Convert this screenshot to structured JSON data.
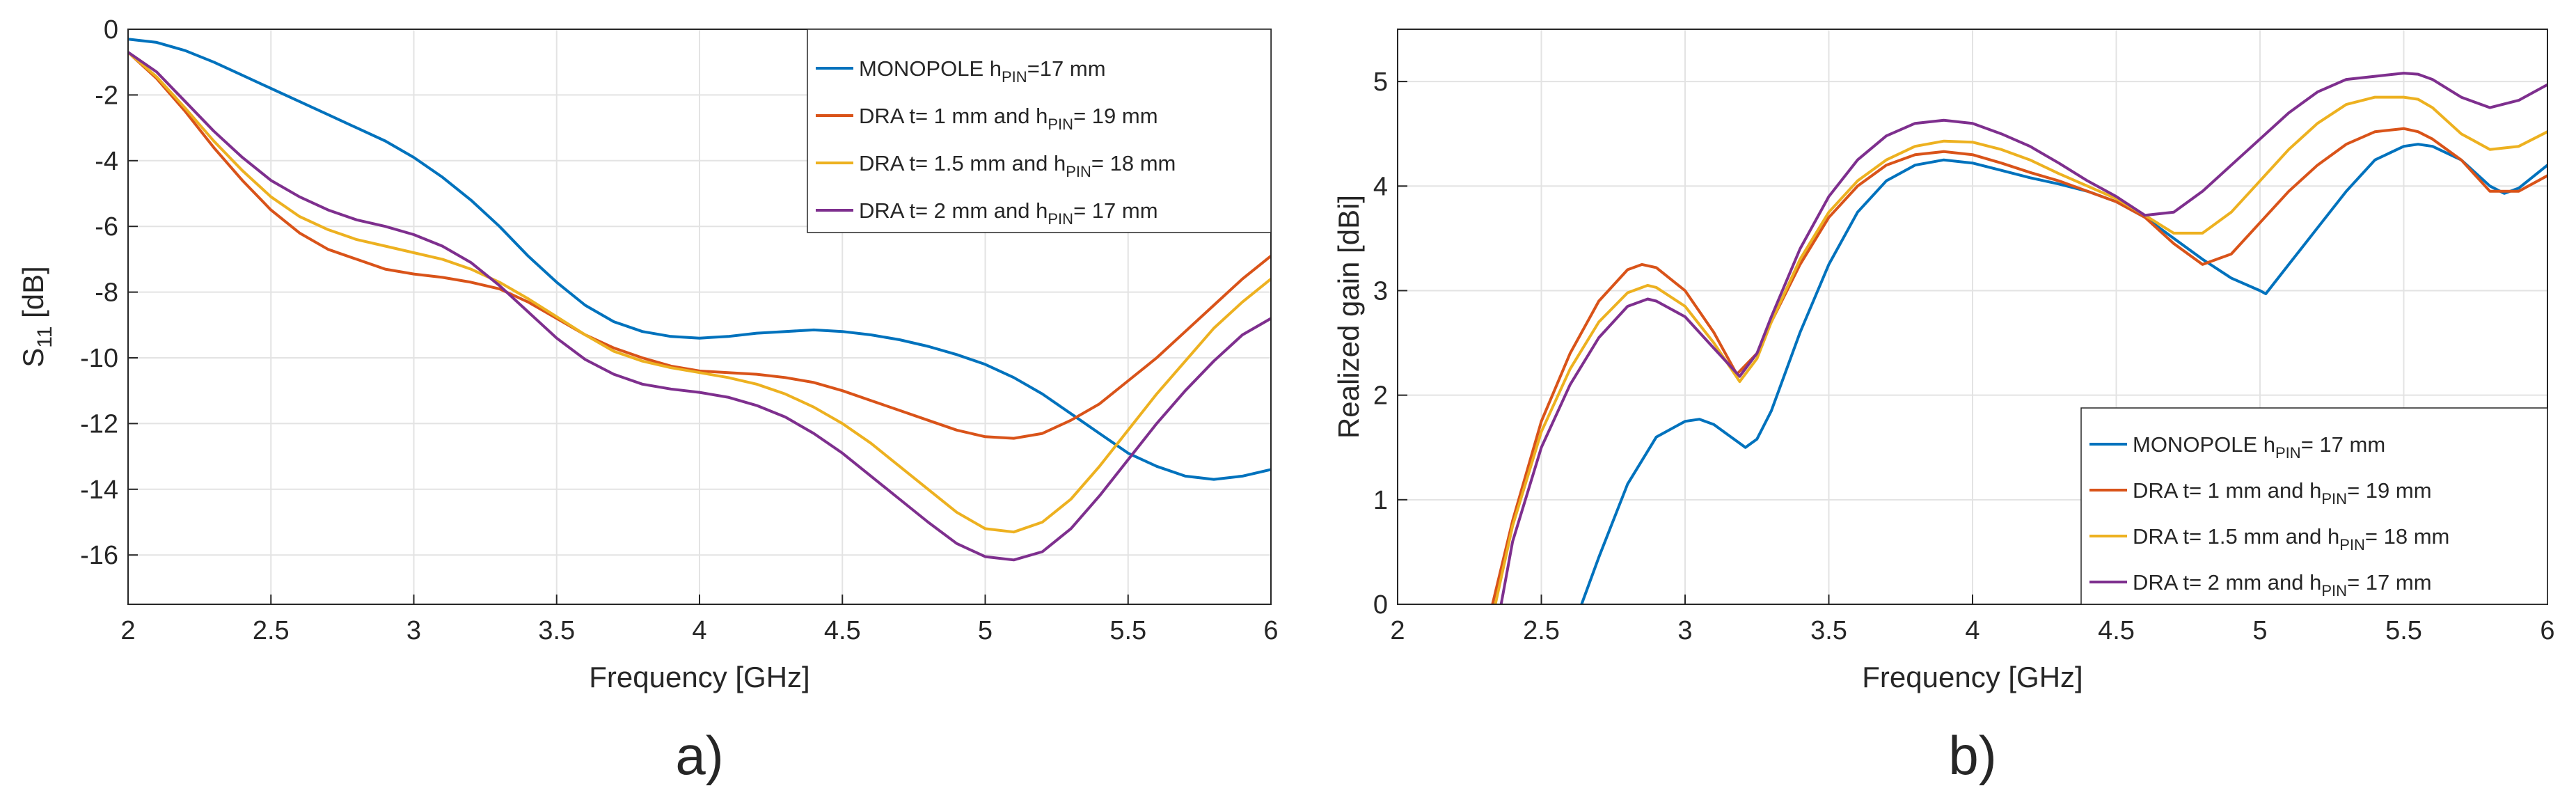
{
  "chart_data": [
    {
      "type": "line",
      "panel_label": "a)",
      "title": "",
      "xlabel": "Frequency [GHz]",
      "ylabel_main": "S",
      "ylabel_sub": "11",
      "ylabel_unit": " [dB]",
      "xlim": [
        2,
        6
      ],
      "ylim": [
        -17.5,
        0
      ],
      "xticks": [
        "2",
        "2.5",
        "3",
        "3.5",
        "4",
        "4.5",
        "5",
        "5.5",
        "6"
      ],
      "yticks": [
        "0",
        "-2",
        "-4",
        "-6",
        "-8",
        "-10",
        "-12",
        "-14",
        "-16"
      ],
      "grid": true,
      "legend_position": "top-right",
      "series": [
        {
          "name": "MONOPOLE h_PIN=17 mm",
          "legend_main": "MONOPOLE h",
          "legend_sub": "PIN",
          "legend_rest": "=17 mm",
          "color": "#0072BD",
          "x": [
            2,
            2.1,
            2.2,
            2.3,
            2.4,
            2.5,
            2.6,
            2.7,
            2.8,
            2.9,
            3,
            3.1,
            3.2,
            3.3,
            3.4,
            3.5,
            3.6,
            3.7,
            3.8,
            3.9,
            4,
            4.1,
            4.2,
            4.3,
            4.4,
            4.5,
            4.6,
            4.7,
            4.8,
            4.9,
            5,
            5.1,
            5.2,
            5.3,
            5.4,
            5.5,
            5.6,
            5.7,
            5.8,
            5.9,
            6
          ],
          "y": [
            -0.3,
            -0.4,
            -0.65,
            -1.0,
            -1.4,
            -1.8,
            -2.2,
            -2.6,
            -3.0,
            -3.4,
            -3.9,
            -4.5,
            -5.2,
            -6.0,
            -6.9,
            -7.7,
            -8.4,
            -8.9,
            -9.2,
            -9.35,
            -9.4,
            -9.35,
            -9.25,
            -9.2,
            -9.15,
            -9.2,
            -9.3,
            -9.45,
            -9.65,
            -9.9,
            -10.2,
            -10.6,
            -11.1,
            -11.7,
            -12.3,
            -12.9,
            -13.3,
            -13.6,
            -13.7,
            -13.6,
            -13.4
          ]
        },
        {
          "name": "DRA t= 1 mm and h_PIN= 19 mm",
          "legend_main": "DRA t= 1 mm and h",
          "legend_sub": "PIN",
          "legend_rest": "= 19 mm",
          "color": "#D95319",
          "x": [
            2,
            2.1,
            2.2,
            2.3,
            2.4,
            2.5,
            2.6,
            2.7,
            2.8,
            2.9,
            3,
            3.1,
            3.2,
            3.3,
            3.4,
            3.5,
            3.6,
            3.7,
            3.8,
            3.9,
            4,
            4.1,
            4.2,
            4.3,
            4.4,
            4.5,
            4.6,
            4.7,
            4.8,
            4.9,
            5,
            5.1,
            5.2,
            5.3,
            5.4,
            5.5,
            5.6,
            5.7,
            5.8,
            5.9,
            6
          ],
          "y": [
            -0.7,
            -1.5,
            -2.5,
            -3.6,
            -4.6,
            -5.5,
            -6.2,
            -6.7,
            -7.0,
            -7.3,
            -7.45,
            -7.55,
            -7.7,
            -7.9,
            -8.3,
            -8.8,
            -9.3,
            -9.7,
            -10.0,
            -10.25,
            -10.4,
            -10.45,
            -10.5,
            -10.6,
            -10.75,
            -11.0,
            -11.3,
            -11.6,
            -11.9,
            -12.2,
            -12.4,
            -12.45,
            -12.3,
            -11.9,
            -11.4,
            -10.7,
            -10.0,
            -9.2,
            -8.4,
            -7.6,
            -6.9
          ]
        },
        {
          "name": "DRA t= 1.5 mm and h_PIN= 18 mm",
          "legend_main": "DRA t= 1.5 mm and h",
          "legend_sub": "PIN",
          "legend_rest": "= 18 mm",
          "color": "#EDB120",
          "x": [
            2,
            2.1,
            2.2,
            2.3,
            2.4,
            2.5,
            2.6,
            2.7,
            2.8,
            2.9,
            3,
            3.1,
            3.2,
            3.3,
            3.4,
            3.5,
            3.6,
            3.7,
            3.8,
            3.9,
            4,
            4.1,
            4.2,
            4.3,
            4.4,
            4.5,
            4.6,
            4.7,
            4.8,
            4.9,
            5,
            5.1,
            5.2,
            5.3,
            5.4,
            5.5,
            5.6,
            5.7,
            5.8,
            5.9,
            6
          ],
          "y": [
            -0.7,
            -1.45,
            -2.4,
            -3.4,
            -4.3,
            -5.1,
            -5.7,
            -6.1,
            -6.4,
            -6.6,
            -6.8,
            -7.0,
            -7.3,
            -7.7,
            -8.2,
            -8.75,
            -9.3,
            -9.8,
            -10.1,
            -10.3,
            -10.45,
            -10.6,
            -10.8,
            -11.1,
            -11.5,
            -12.0,
            -12.6,
            -13.3,
            -14.0,
            -14.7,
            -15.2,
            -15.3,
            -15.0,
            -14.3,
            -13.3,
            -12.2,
            -11.1,
            -10.1,
            -9.1,
            -8.3,
            -7.6
          ]
        },
        {
          "name": "DRA t= 2 mm and h_PIN= 17 mm",
          "legend_main": "DRA t= 2 mm and h",
          "legend_sub": "PIN",
          "legend_rest": "= 17 mm",
          "color": "#7E2F8E",
          "x": [
            2,
            2.1,
            2.2,
            2.3,
            2.4,
            2.5,
            2.6,
            2.7,
            2.8,
            2.9,
            3,
            3.1,
            3.2,
            3.3,
            3.4,
            3.5,
            3.6,
            3.7,
            3.8,
            3.9,
            4,
            4.1,
            4.2,
            4.3,
            4.4,
            4.5,
            4.6,
            4.7,
            4.8,
            4.9,
            5,
            5.1,
            5.2,
            5.3,
            5.4,
            5.5,
            5.6,
            5.7,
            5.8,
            5.9,
            6
          ],
          "y": [
            -0.7,
            -1.3,
            -2.2,
            -3.1,
            -3.9,
            -4.6,
            -5.1,
            -5.5,
            -5.8,
            -6.0,
            -6.25,
            -6.6,
            -7.1,
            -7.8,
            -8.6,
            -9.4,
            -10.05,
            -10.5,
            -10.8,
            -10.95,
            -11.05,
            -11.2,
            -11.45,
            -11.8,
            -12.3,
            -12.9,
            -13.6,
            -14.3,
            -15.0,
            -15.65,
            -16.05,
            -16.15,
            -15.9,
            -15.2,
            -14.2,
            -13.1,
            -12.0,
            -11.0,
            -10.1,
            -9.3,
            -8.8
          ]
        }
      ]
    },
    {
      "type": "line",
      "panel_label": "b)",
      "title": "",
      "xlabel": "Frequency [GHz]",
      "ylabel": "Realized gain [dBi]",
      "xlim": [
        2,
        6
      ],
      "ylim": [
        0,
        5.5
      ],
      "xticks": [
        "2",
        "2.5",
        "3",
        "3.5",
        "4",
        "4.5",
        "5",
        "5.5",
        "6"
      ],
      "yticks": [
        "0",
        "1",
        "2",
        "3",
        "4",
        "5"
      ],
      "grid": true,
      "legend_position": "bottom-right",
      "series": [
        {
          "name": "MONOPOLE h_PIN= 17 mm",
          "legend_main": "MONOPOLE h",
          "legend_sub": "PIN",
          "legend_rest": "= 17 mm",
          "color": "#0072BD",
          "x": [
            2.64,
            2.7,
            2.8,
            2.9,
            3.0,
            3.05,
            3.1,
            3.15,
            3.21,
            3.25,
            3.3,
            3.4,
            3.5,
            3.6,
            3.7,
            3.8,
            3.9,
            4.0,
            4.1,
            4.2,
            4.3,
            4.4,
            4.5,
            4.6,
            4.7,
            4.8,
            4.9,
            5.0,
            5.02,
            5.1,
            5.2,
            5.3,
            5.4,
            5.5,
            5.55,
            5.6,
            5.7,
            5.8,
            5.85,
            5.9,
            6.0
          ],
          "y": [
            0,
            0.45,
            1.15,
            1.6,
            1.75,
            1.77,
            1.72,
            1.62,
            1.5,
            1.58,
            1.85,
            2.6,
            3.25,
            3.75,
            4.05,
            4.2,
            4.25,
            4.22,
            4.15,
            4.08,
            4.02,
            3.95,
            3.85,
            3.7,
            3.5,
            3.3,
            3.12,
            3.0,
            2.97,
            3.25,
            3.6,
            3.95,
            4.25,
            4.38,
            4.4,
            4.38,
            4.25,
            4.0,
            3.93,
            3.98,
            4.2
          ]
        },
        {
          "name": "DRA t= 1 mm and h_PIN= 19 mm",
          "legend_main": "DRA t= 1 mm and h",
          "legend_sub": "PIN",
          "legend_rest": "= 19 mm",
          "color": "#D95319",
          "x": [
            2.33,
            2.4,
            2.5,
            2.6,
            2.7,
            2.8,
            2.85,
            2.9,
            3.0,
            3.1,
            3.18,
            3.25,
            3.3,
            3.4,
            3.5,
            3.6,
            3.7,
            3.8,
            3.9,
            4.0,
            4.1,
            4.2,
            4.3,
            4.4,
            4.5,
            4.6,
            4.7,
            4.8,
            4.9,
            5.0,
            5.1,
            5.2,
            5.3,
            5.4,
            5.5,
            5.55,
            5.6,
            5.7,
            5.8,
            5.9,
            6.0
          ],
          "y": [
            0,
            0.8,
            1.75,
            2.4,
            2.9,
            3.2,
            3.25,
            3.22,
            3.0,
            2.6,
            2.2,
            2.4,
            2.7,
            3.25,
            3.7,
            4.0,
            4.2,
            4.3,
            4.33,
            4.3,
            4.22,
            4.13,
            4.05,
            3.95,
            3.85,
            3.7,
            3.45,
            3.25,
            3.35,
            3.65,
            3.95,
            4.2,
            4.4,
            4.52,
            4.55,
            4.52,
            4.45,
            4.25,
            3.95,
            3.95,
            4.1
          ]
        },
        {
          "name": "DRA t= 1.5 mm and h_PIN= 18 mm",
          "legend_main": "DRA t= 1.5 mm and h",
          "legend_sub": "PIN",
          "legend_rest": "= 18 mm",
          "color": "#EDB120",
          "x": [
            2.34,
            2.4,
            2.5,
            2.6,
            2.7,
            2.8,
            2.87,
            2.9,
            3.0,
            3.1,
            3.19,
            3.25,
            3.3,
            3.4,
            3.5,
            3.6,
            3.7,
            3.8,
            3.9,
            4.0,
            4.1,
            4.2,
            4.3,
            4.4,
            4.5,
            4.6,
            4.7,
            4.8,
            4.9,
            5.0,
            5.1,
            5.2,
            5.3,
            5.4,
            5.5,
            5.55,
            5.6,
            5.7,
            5.8,
            5.9,
            6.0
          ],
          "y": [
            0,
            0.75,
            1.65,
            2.25,
            2.7,
            2.98,
            3.05,
            3.03,
            2.85,
            2.5,
            2.13,
            2.35,
            2.7,
            3.3,
            3.75,
            4.05,
            4.25,
            4.38,
            4.43,
            4.42,
            4.35,
            4.25,
            4.12,
            4.0,
            3.88,
            3.72,
            3.55,
            3.55,
            3.75,
            4.05,
            4.35,
            4.6,
            4.78,
            4.85,
            4.85,
            4.83,
            4.75,
            4.5,
            4.35,
            4.38,
            4.52
          ]
        },
        {
          "name": "DRA t= 2 mm and h_PIN= 17 mm",
          "legend_main": "DRA t= 2 mm and h",
          "legend_sub": "PIN",
          "legend_rest": "= 17 mm",
          "color": "#7E2F8E",
          "x": [
            2.36,
            2.4,
            2.5,
            2.6,
            2.7,
            2.8,
            2.87,
            2.9,
            3.0,
            3.1,
            3.19,
            3.25,
            3.3,
            3.4,
            3.5,
            3.6,
            3.7,
            3.8,
            3.9,
            4.0,
            4.1,
            4.2,
            4.3,
            4.4,
            4.5,
            4.6,
            4.7,
            4.8,
            4.9,
            5.0,
            5.1,
            5.2,
            5.3,
            5.4,
            5.5,
            5.55,
            5.6,
            5.7,
            5.8,
            5.9,
            6.0
          ],
          "y": [
            0,
            0.6,
            1.5,
            2.1,
            2.55,
            2.85,
            2.92,
            2.9,
            2.75,
            2.45,
            2.18,
            2.4,
            2.75,
            3.4,
            3.9,
            4.25,
            4.48,
            4.6,
            4.63,
            4.6,
            4.5,
            4.38,
            4.22,
            4.05,
            3.9,
            3.72,
            3.75,
            3.95,
            4.2,
            4.45,
            4.7,
            4.9,
            5.02,
            5.05,
            5.08,
            5.07,
            5.02,
            4.85,
            4.75,
            4.82,
            4.97
          ]
        }
      ]
    }
  ]
}
